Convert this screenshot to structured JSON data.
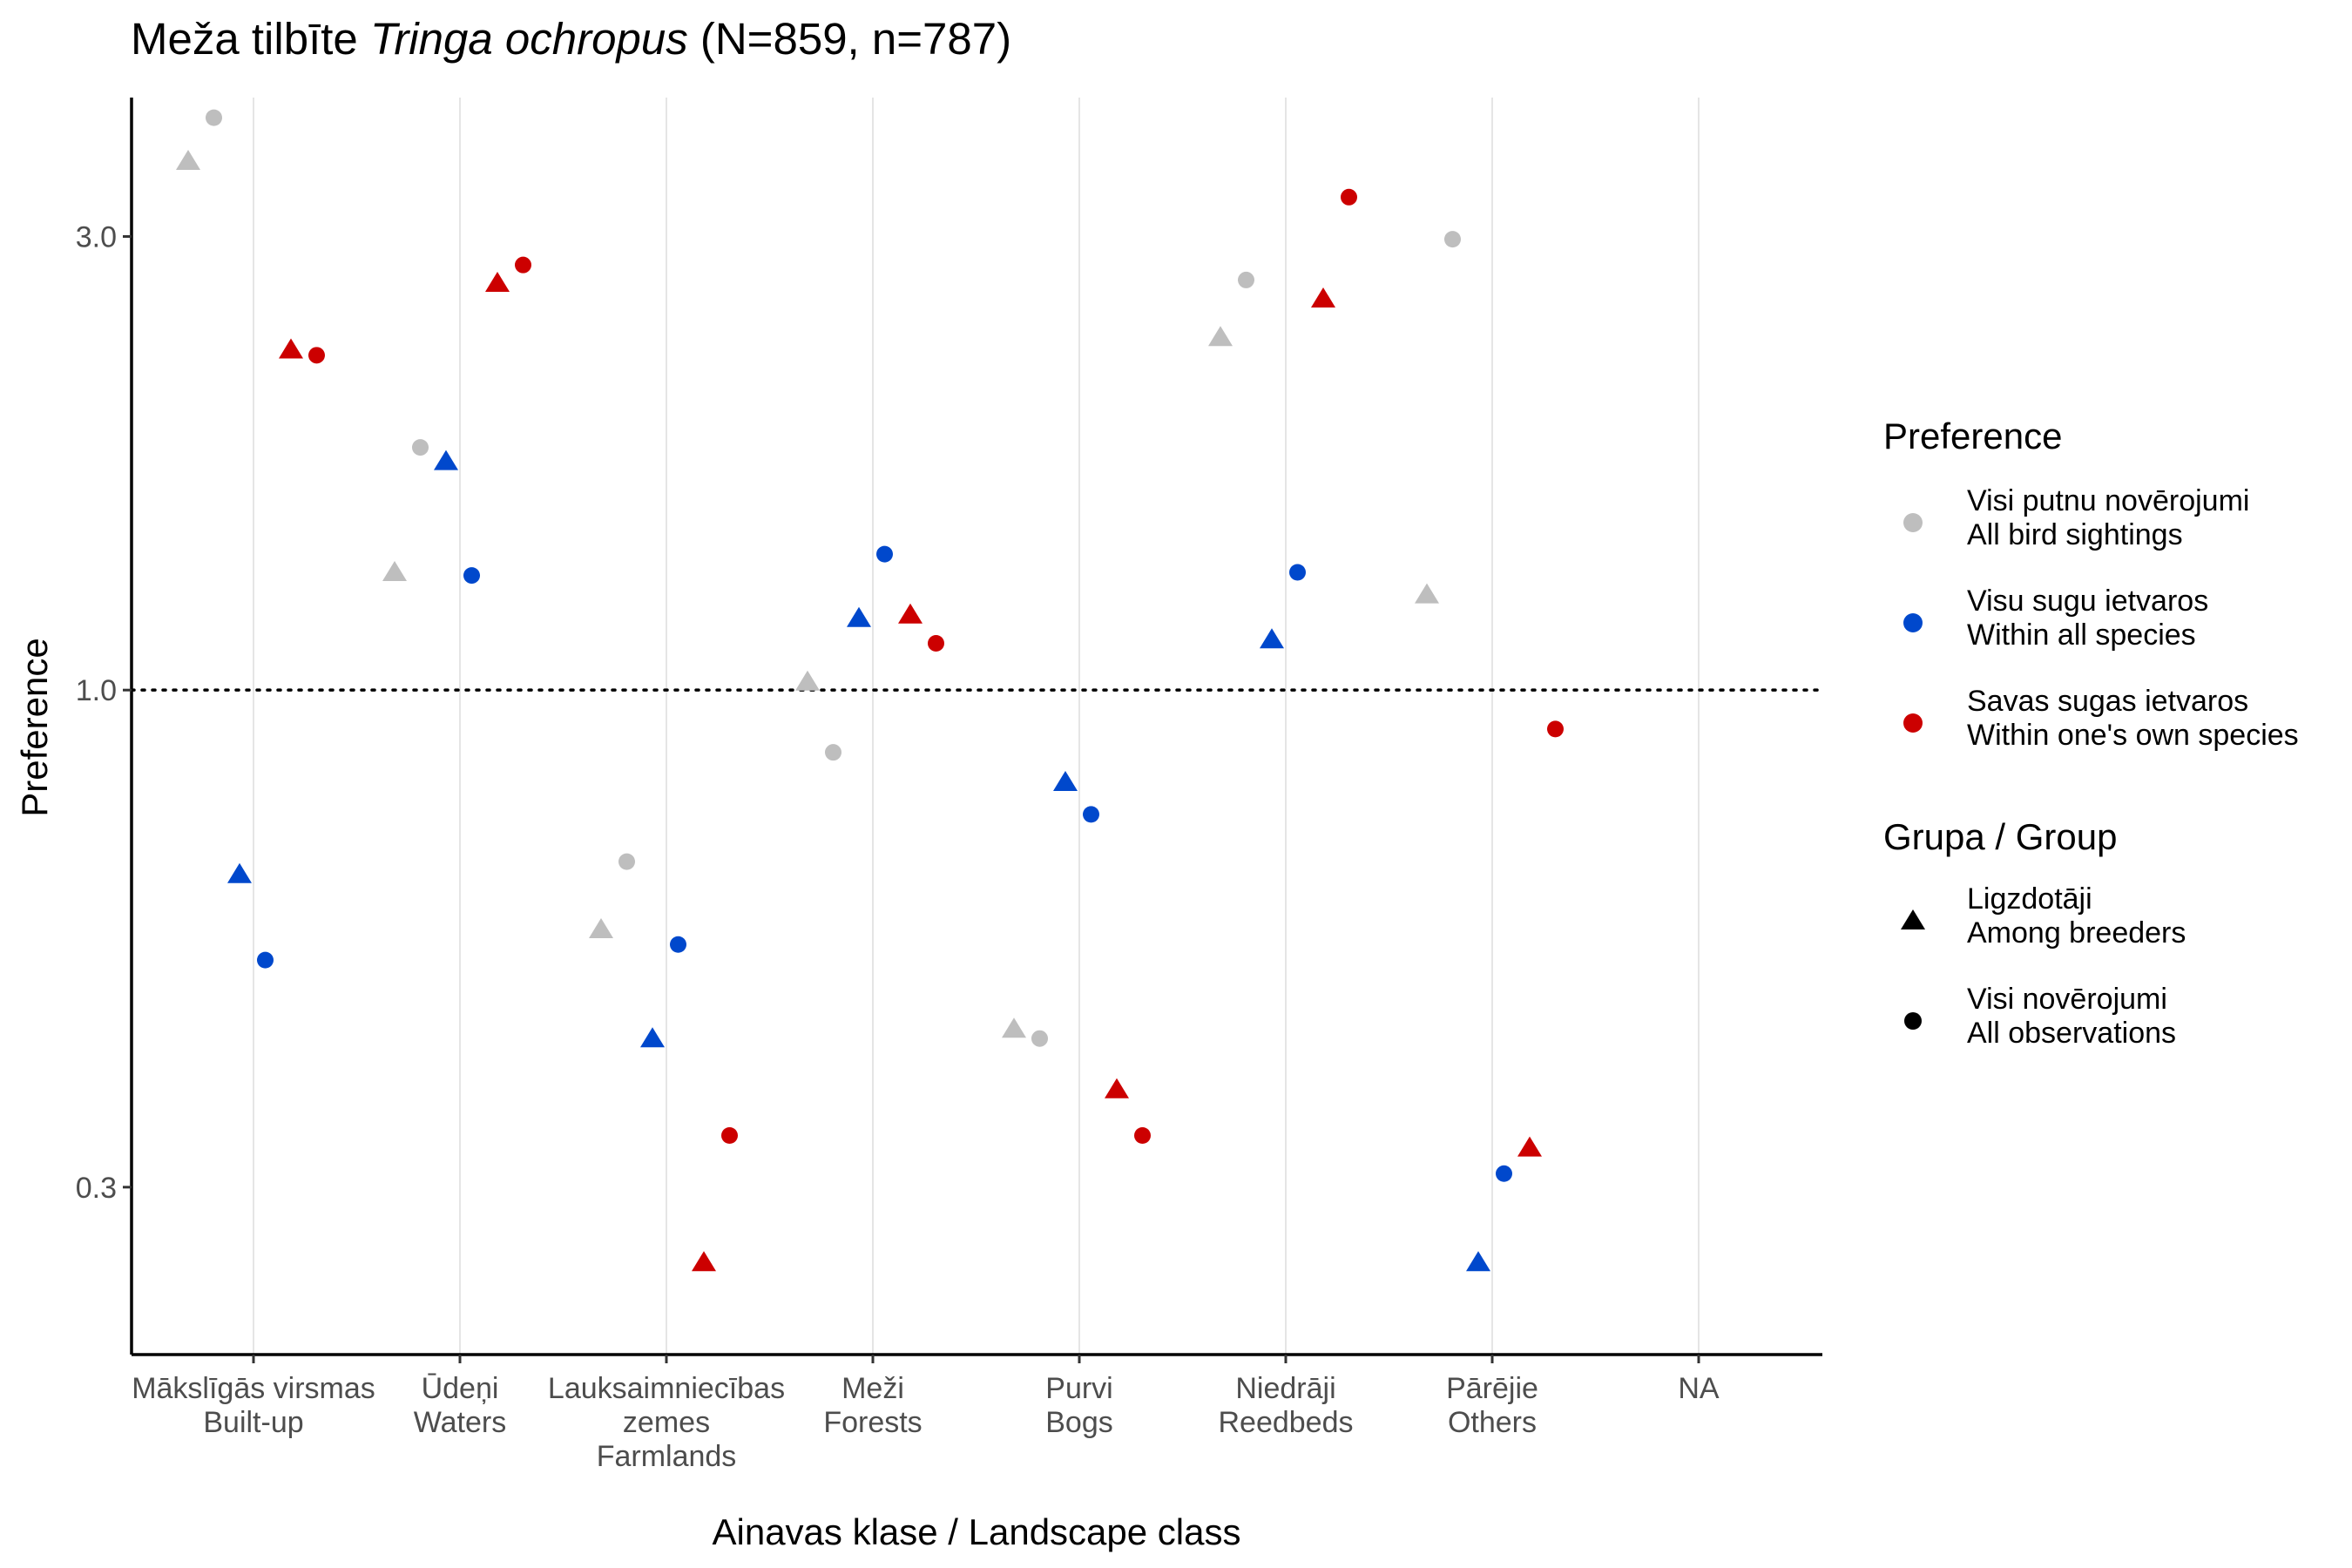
{
  "chart_data": {
    "type": "scatter",
    "title": {
      "prefix": "Meža tilbīte ",
      "species": "Tringa ochropus",
      "suffix": " (N=859, n=787)"
    },
    "xlabel": "Ainavas klase / Landscape class",
    "ylabel": "Preference",
    "y_scale": "log",
    "ylim": [
      0.2,
      4.2
    ],
    "y_ticks": [
      {
        "value": 0.3,
        "label": "0.3"
      },
      {
        "value": 1.0,
        "label": "1.0"
      },
      {
        "value": 3.0,
        "label": "3.0"
      }
    ],
    "reference_line": {
      "value": 1.0,
      "style": "dotted"
    },
    "grid": {
      "vertical_major": true,
      "horizontal": false
    },
    "categories": [
      {
        "id": "builtup",
        "lines": [
          "Mākslīgās virsmas",
          "Built-up"
        ]
      },
      {
        "id": "waters",
        "lines": [
          "Ūdeņi",
          "Waters"
        ]
      },
      {
        "id": "farmlands",
        "lines": [
          "Lauksaimniecības",
          "zemes",
          "Farmlands"
        ]
      },
      {
        "id": "forests",
        "lines": [
          "Meži",
          "Forests"
        ]
      },
      {
        "id": "bogs",
        "lines": [
          "Purvi",
          "Bogs"
        ]
      },
      {
        "id": "reedbeds",
        "lines": [
          "Niedrāji",
          "Reedbeds"
        ]
      },
      {
        "id": "others",
        "lines": [
          "Pārējie",
          "Others"
        ]
      },
      {
        "id": "na",
        "lines": [
          "NA"
        ]
      }
    ],
    "series": [
      {
        "preference": "all_bird",
        "group": "breeders",
        "values": [
          3.6,
          1.33,
          0.56,
          1.02,
          0.44,
          2.35,
          1.26,
          null
        ]
      },
      {
        "preference": "all_bird",
        "group": "all_obs",
        "values": [
          4.0,
          1.8,
          0.66,
          0.86,
          0.43,
          2.7,
          2.98,
          null
        ]
      },
      {
        "preference": "within_all",
        "group": "breeders",
        "values": [
          0.64,
          1.74,
          0.43,
          1.19,
          0.8,
          1.13,
          0.25,
          null
        ]
      },
      {
        "preference": "within_all",
        "group": "all_obs",
        "values": [
          0.52,
          1.32,
          0.54,
          1.39,
          0.74,
          1.33,
          0.31,
          null
        ]
      },
      {
        "preference": "own",
        "group": "breeders",
        "values": [
          2.28,
          2.68,
          0.25,
          1.2,
          0.38,
          2.58,
          0.33,
          null
        ]
      },
      {
        "preference": "own",
        "group": "all_obs",
        "values": [
          2.25,
          2.8,
          0.34,
          1.12,
          0.34,
          3.3,
          0.91,
          null
        ]
      }
    ],
    "legend": {
      "position": "right",
      "preference": {
        "title": "Preference",
        "items": [
          {
            "key": "all_bird",
            "lines": [
              "Visi putnu novērojumi",
              "All bird sightings"
            ],
            "color": "#bebebe"
          },
          {
            "key": "within_all",
            "lines": [
              "Visu sugu ietvaros",
              "Within all species"
            ],
            "color": "#0048cc"
          },
          {
            "key": "own",
            "lines": [
              "Savas sugas ietvaros",
              "Within one's own species"
            ],
            "color": "#cc0000"
          }
        ]
      },
      "group": {
        "title": "Grupa / Group",
        "items": [
          {
            "key": "breeders",
            "lines": [
              "Ligzdotāji",
              "Among breeders"
            ],
            "shape": "triangle"
          },
          {
            "key": "all_obs",
            "lines": [
              "Visi novērojumi",
              "All observations"
            ],
            "shape": "circle"
          }
        ]
      }
    }
  }
}
